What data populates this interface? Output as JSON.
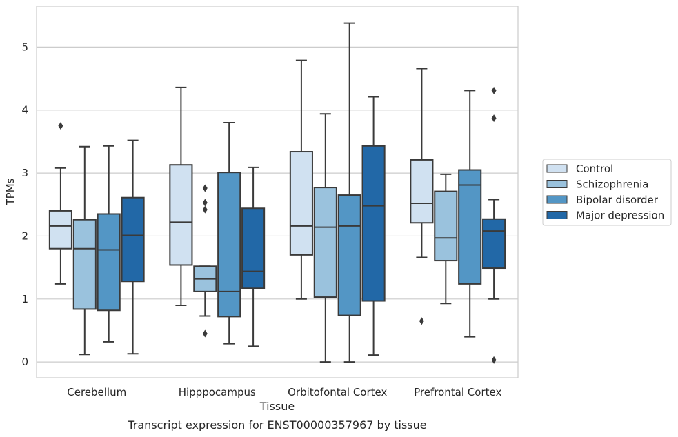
{
  "caption": "Transcript expression for ENST00000357967 by tissue",
  "chart_data": {
    "type": "box",
    "title": "",
    "xlabel": "Tissue",
    "ylabel": "TPMs",
    "ylim": [
      -0.25,
      5.65
    ],
    "yticks": [
      0,
      1,
      2,
      3,
      4,
      5
    ],
    "grid": "horizontal",
    "legend_position": "right",
    "categories": [
      "Cerebellum",
      "Hipppocampus",
      "Orbitofontal Cortex",
      "Prefrontal Cortex"
    ],
    "series": [
      {
        "name": "Control",
        "color": "#d0e1f1",
        "boxes": [
          {
            "whislo": 1.24,
            "q1": 1.8,
            "med": 2.16,
            "q3": 2.4,
            "whishi": 3.08,
            "fliers": [
              3.75
            ]
          },
          {
            "whislo": 0.9,
            "q1": 1.54,
            "med": 2.22,
            "q3": 3.13,
            "whishi": 4.36,
            "fliers": []
          },
          {
            "whislo": 1.0,
            "q1": 1.7,
            "med": 2.16,
            "q3": 3.34,
            "whishi": 4.79,
            "fliers": []
          },
          {
            "whislo": 1.66,
            "q1": 2.21,
            "med": 2.52,
            "q3": 3.21,
            "whishi": 4.66,
            "fliers": [
              0.65
            ]
          }
        ]
      },
      {
        "name": "Schizophrenia",
        "color": "#9ac2dd",
        "boxes": [
          {
            "whislo": 0.12,
            "q1": 0.84,
            "med": 1.8,
            "q3": 2.26,
            "whishi": 3.42,
            "fliers": []
          },
          {
            "whislo": 0.73,
            "q1": 1.12,
            "med": 1.32,
            "q3": 1.52,
            "whishi": 1.52,
            "fliers": [
              0.45,
              2.42,
              2.53,
              2.76
            ]
          },
          {
            "whislo": 0.0,
            "q1": 1.03,
            "med": 2.14,
            "q3": 2.77,
            "whishi": 3.94,
            "fliers": []
          },
          {
            "whislo": 0.93,
            "q1": 1.61,
            "med": 1.97,
            "q3": 2.71,
            "whishi": 2.98,
            "fliers": []
          }
        ]
      },
      {
        "name": "Bipolar disorder",
        "color": "#5396c5",
        "boxes": [
          {
            "whislo": 0.32,
            "q1": 0.82,
            "med": 1.78,
            "q3": 2.35,
            "whishi": 3.43,
            "fliers": []
          },
          {
            "whislo": 0.29,
            "q1": 0.72,
            "med": 1.12,
            "q3": 3.01,
            "whishi": 3.8,
            "fliers": []
          },
          {
            "whislo": 0.0,
            "q1": 0.74,
            "med": 2.16,
            "q3": 2.65,
            "whishi": 5.38,
            "fliers": []
          },
          {
            "whislo": 0.4,
            "q1": 1.24,
            "med": 2.81,
            "q3": 3.05,
            "whishi": 4.31,
            "fliers": []
          }
        ]
      },
      {
        "name": "Major depression",
        "color": "#2268a7",
        "boxes": [
          {
            "whislo": 0.13,
            "q1": 1.28,
            "med": 2.01,
            "q3": 2.61,
            "whishi": 3.52,
            "fliers": []
          },
          {
            "whislo": 0.25,
            "q1": 1.17,
            "med": 1.44,
            "q3": 2.44,
            "whishi": 3.09,
            "fliers": []
          },
          {
            "whislo": 0.11,
            "q1": 0.97,
            "med": 2.48,
            "q3": 3.43,
            "whishi": 4.21,
            "fliers": []
          },
          {
            "whislo": 1.0,
            "q1": 1.49,
            "med": 2.08,
            "q3": 2.27,
            "whishi": 2.58,
            "fliers": [
              0.03,
              3.87,
              4.31
            ]
          }
        ]
      }
    ]
  }
}
